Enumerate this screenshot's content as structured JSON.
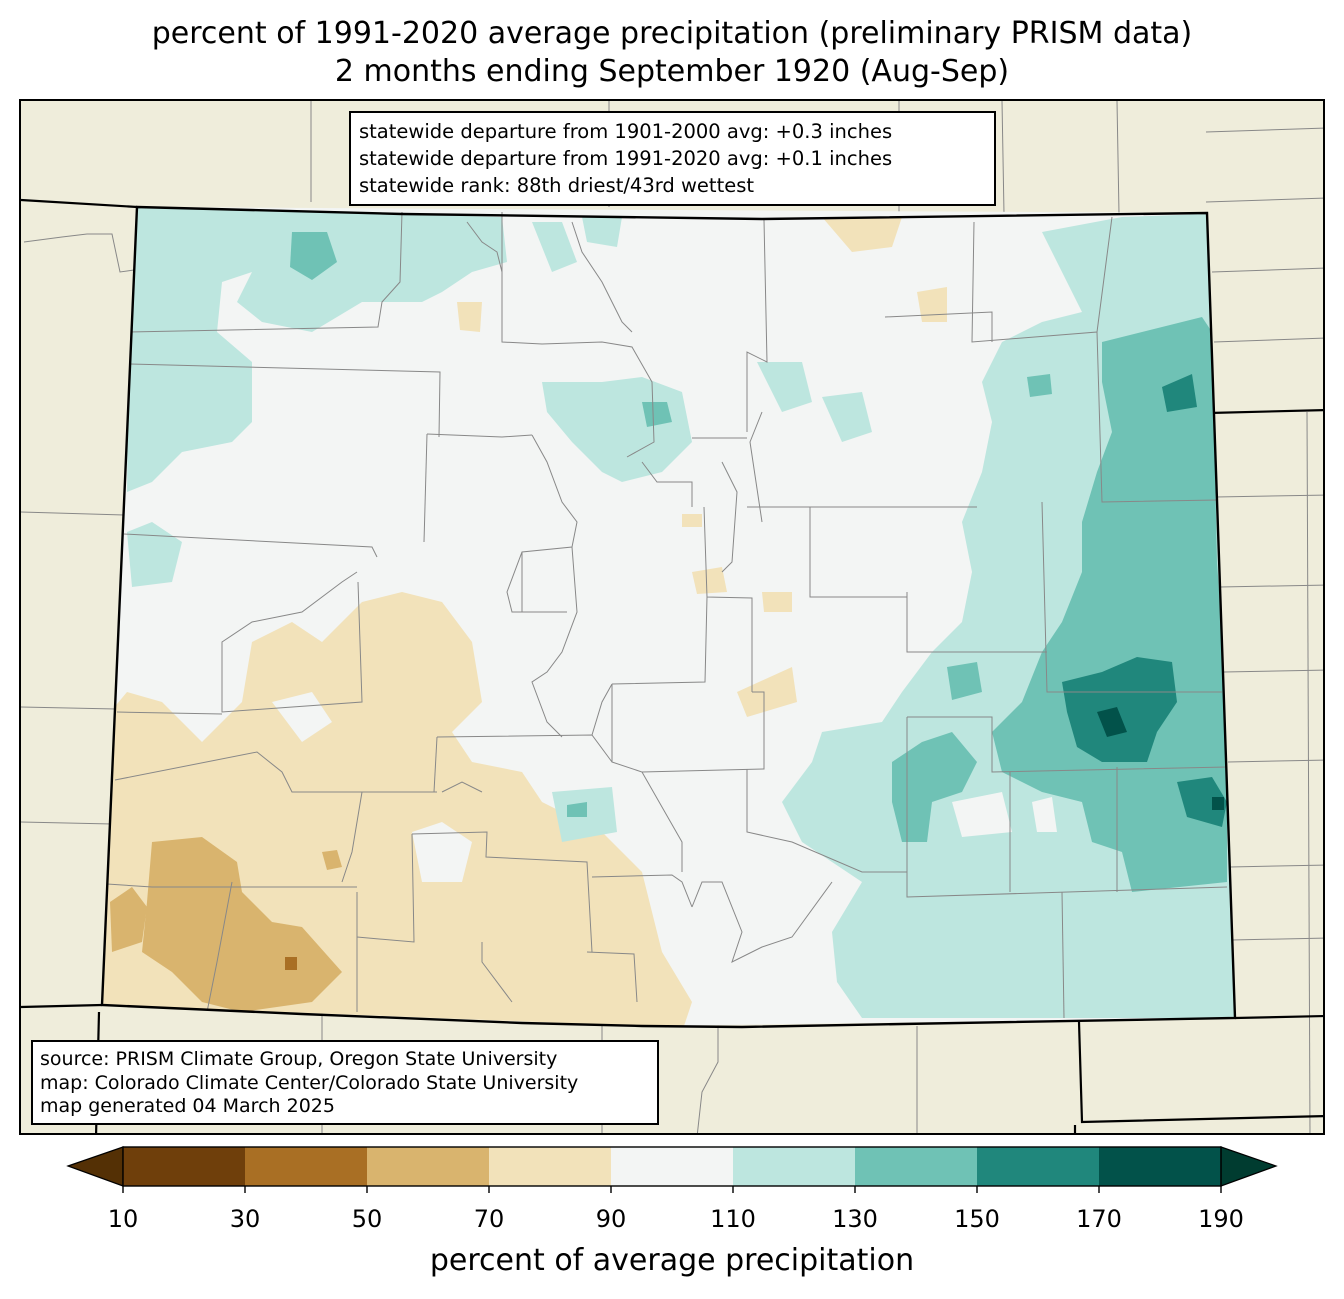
{
  "title": {
    "line1": "percent of 1991-2020 average precipitation (preliminary PRISM data)",
    "line2": "2 months ending September 1920 (Aug-Sep)"
  },
  "stats": {
    "line1": "statewide departure from 1901-2000 avg: +0.3 inches",
    "line2": "statewide departure from 1991-2020 avg: +0.1 inches",
    "line3": "statewide rank: 88th driest/43rd wettest"
  },
  "source": {
    "line1": "source: PRISM Climate Group, Oregon State University",
    "line2": "map: Colorado Climate Center/Colorado State University",
    "line3": "map generated 04 March 2025"
  },
  "colorbar": {
    "label": "percent of average precipitation",
    "ticks": [
      "10",
      "30",
      "50",
      "70",
      "90",
      "110",
      "130",
      "150",
      "170",
      "190"
    ],
    "colors": {
      "under": "#543005",
      "c10_30": "#6f3f0b",
      "c30_50": "#a96f24",
      "c50_70": "#d9b46e",
      "c70_90": "#f2e2ba",
      "c90_110": "#f3f5f4",
      "c110_130": "#bde6df",
      "c130_150": "#6fc2b5",
      "c150_170": "#20877c",
      "c170_190": "#02524a",
      "over": "#003c30"
    }
  },
  "map": {
    "background": "#efeddb",
    "state_fill": "#f3f5f4",
    "county_line": "#888888",
    "state_line": "#000000"
  }
}
